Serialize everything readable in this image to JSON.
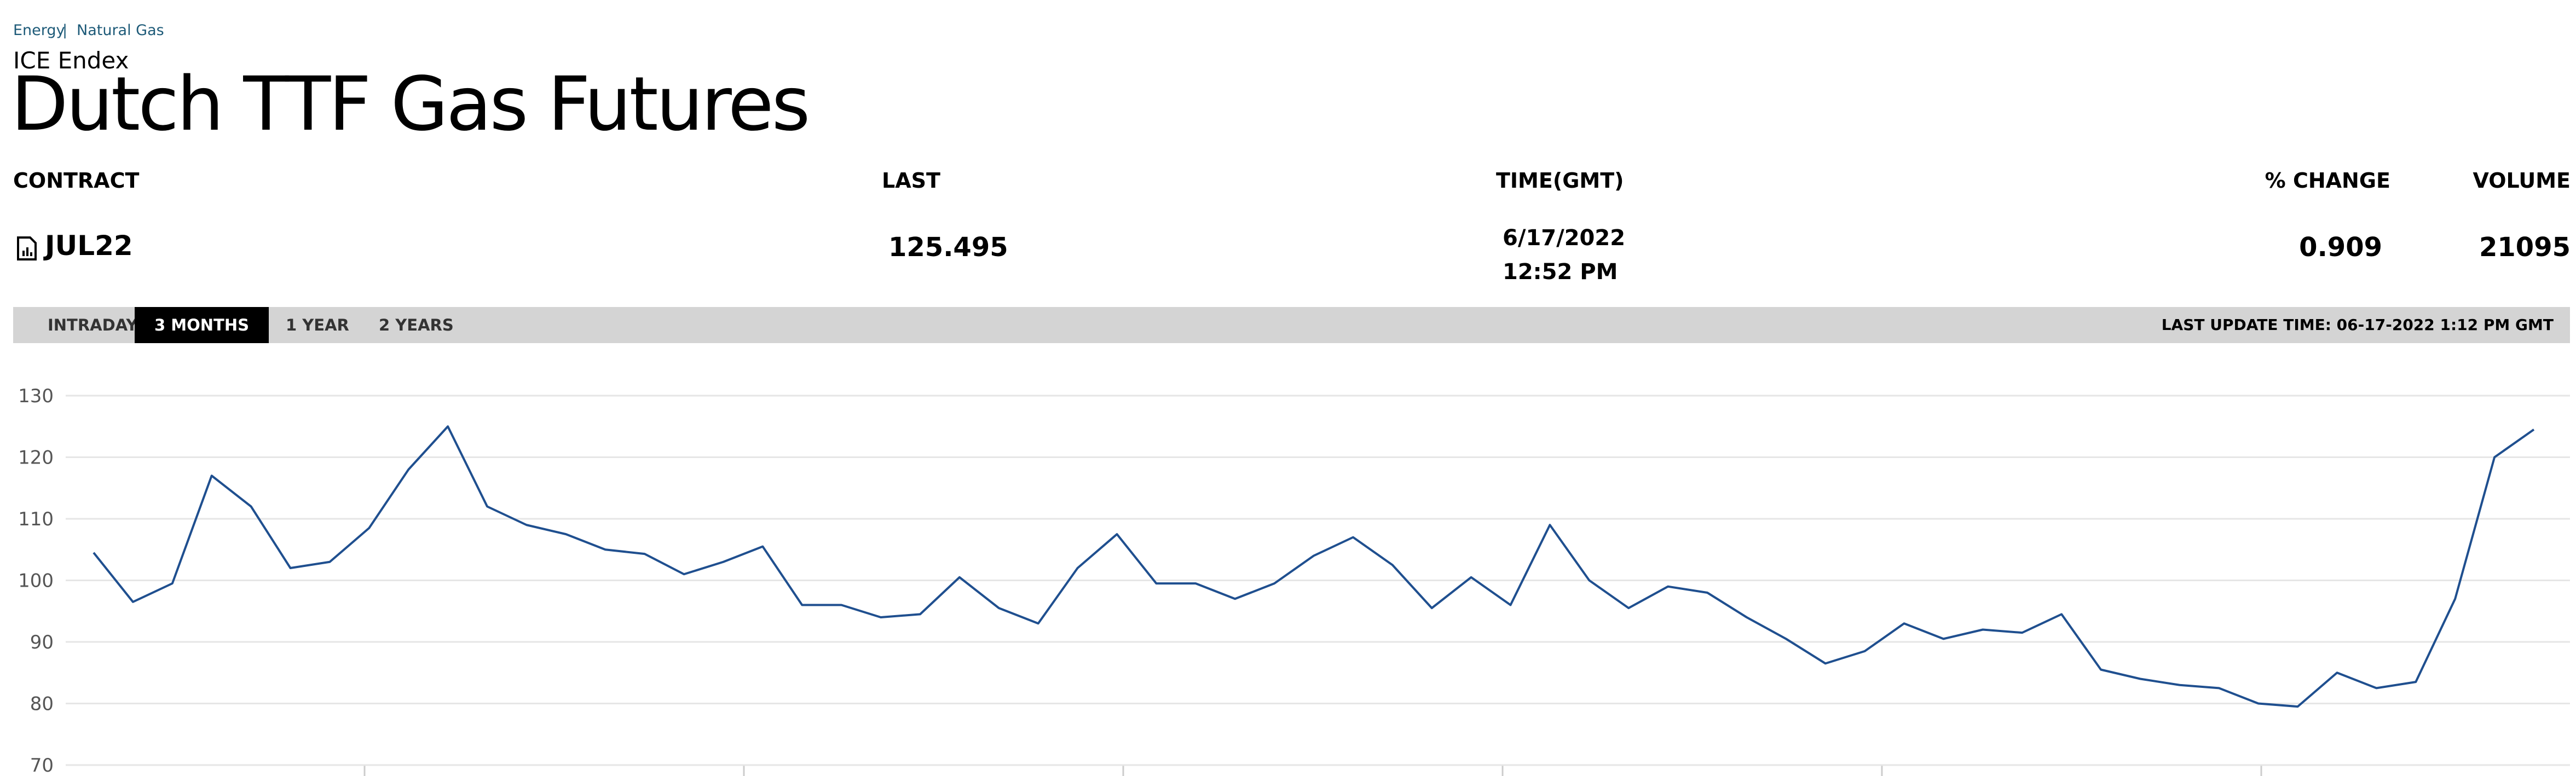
{
  "breadcrumb": [
    "Energy",
    "Natural Gas"
  ],
  "exchange": "ICE Endex",
  "title": "Dutch TTF Gas Futures",
  "table": {
    "headers": [
      "CONTRACT",
      "LAST",
      "TIME(GMT)",
      "% CHANGE",
      "VOLUME"
    ],
    "row": {
      "contract": "JUL22",
      "last": "125.495",
      "date": "6/17/2022",
      "time": "12:52 PM",
      "change": "0.909",
      "volume": "21095"
    }
  },
  "tabs": [
    "INTRADAY",
    "3 MONTHS",
    "1 YEAR",
    "2 YEARS"
  ],
  "active_tab": 1,
  "last_update": "LAST UPDATE TIME: 06-17-2022 1:12 PM GMT",
  "chart_data": {
    "type": "line",
    "color": "#1f4f8f",
    "grid": true,
    "categories": [
      null,
      null,
      null,
      null,
      null,
      null,
      null,
      null,
      null,
      null,
      null,
      null,
      null,
      null,
      null,
      null,
      null,
      null,
      null,
      null,
      null,
      null,
      null,
      null,
      null,
      null,
      null,
      null,
      null,
      null,
      null,
      null,
      null,
      null,
      null,
      null,
      null,
      null,
      null,
      null,
      null,
      null,
      null,
      null,
      null,
      null,
      null,
      null,
      null,
      null,
      null,
      null,
      null,
      null,
      null,
      null,
      null,
      null,
      null,
      null,
      null,
      null,
      null
    ],
    "values": [
      104.5,
      96.5,
      99.5,
      117,
      112,
      102,
      103,
      108.5,
      118,
      125,
      112,
      109,
      107.5,
      105,
      104.3,
      101,
      103,
      105.5,
      96,
      96,
      94,
      94.5,
      100.5,
      95.5,
      93,
      102,
      107.5,
      99.5,
      99.5,
      97,
      99.5,
      104,
      107,
      102.5,
      95.5,
      100.5,
      96,
      109,
      100,
      95.5,
      99,
      98,
      94,
      90.5,
      86.5,
      88.5,
      93,
      90.5,
      92,
      91.5,
      94.5,
      85.5,
      84,
      83,
      82.5,
      80,
      79.5,
      85,
      82.5,
      83.5,
      97,
      120,
      124.5
    ],
    "ylim": [
      70,
      130
    ],
    "yticks": [
      70,
      80,
      90,
      100,
      110,
      120,
      130
    ]
  }
}
